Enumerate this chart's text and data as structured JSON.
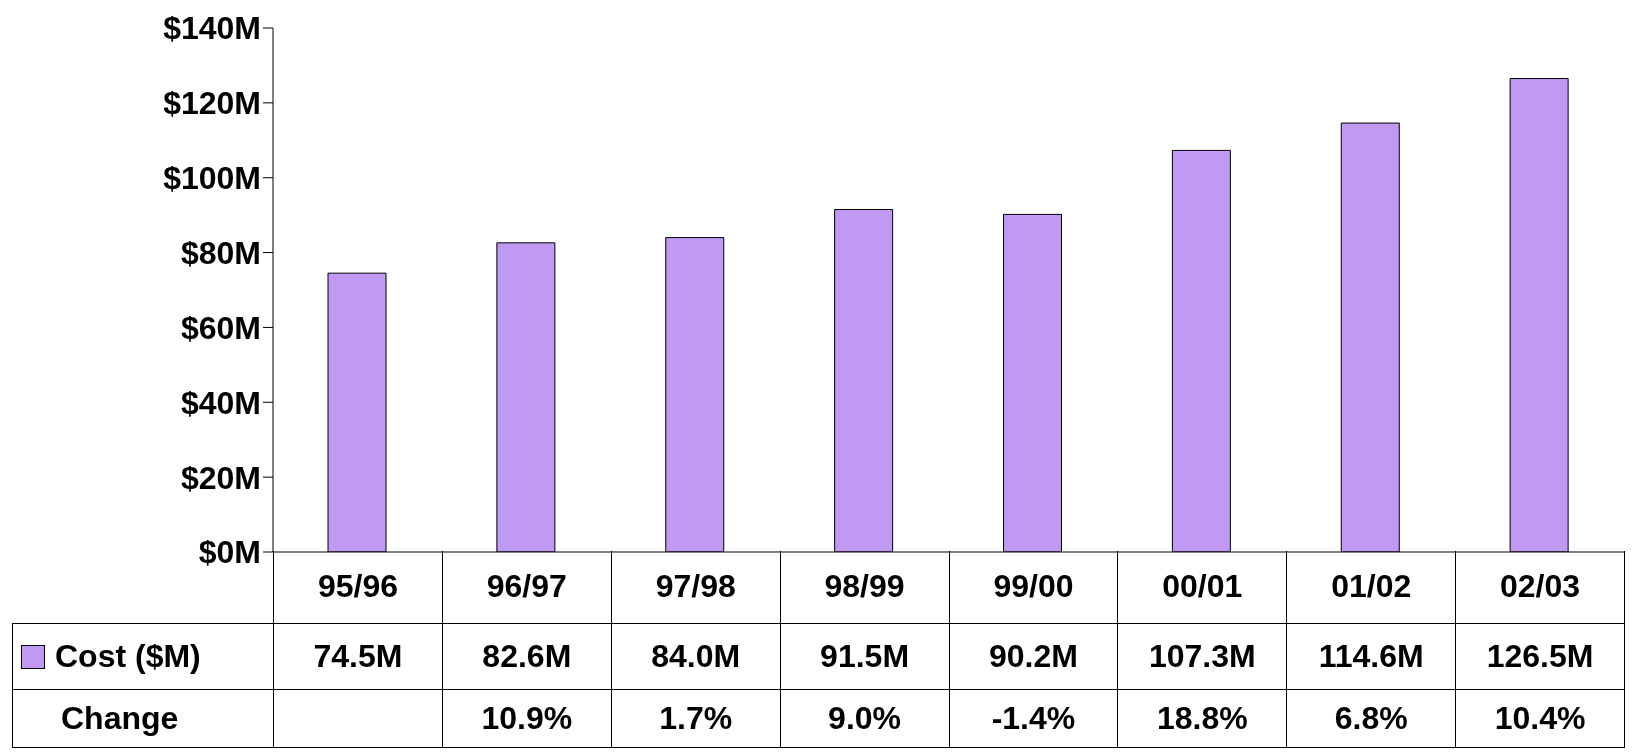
{
  "chart_data": {
    "type": "bar",
    "categories": [
      "95/96",
      "96/97",
      "97/98",
      "98/99",
      "99/00",
      "00/01",
      "01/02",
      "02/03"
    ],
    "series": [
      {
        "name": "Cost ($M)",
        "color": "#bf99f2",
        "values": [
          74.5,
          82.6,
          84.0,
          91.5,
          90.2,
          107.3,
          114.6,
          126.5
        ],
        "value_labels": [
          "74.5M",
          "82.6M",
          "84.0M",
          "91.5M",
          "90.2M",
          "107.3M",
          "114.6M",
          "126.5M"
        ]
      }
    ],
    "ylim": [
      0,
      140
    ],
    "yticks": [
      {
        "value": 0,
        "label": "$0M"
      },
      {
        "value": 20,
        "label": "$20M"
      },
      {
        "value": 40,
        "label": "$40M"
      },
      {
        "value": 60,
        "label": "$60M"
      },
      {
        "value": 80,
        "label": "$80M"
      },
      {
        "value": 100,
        "label": "$100M"
      },
      {
        "value": 120,
        "label": "$120M"
      },
      {
        "value": 140,
        "label": "$140M"
      }
    ],
    "legend": "bottom",
    "annotations": [
      "Change",
      "10.9%",
      "1.7%",
      "9.0%",
      "-1.4%",
      "18.8%",
      "6.8%",
      "10.4%"
    ]
  }
}
